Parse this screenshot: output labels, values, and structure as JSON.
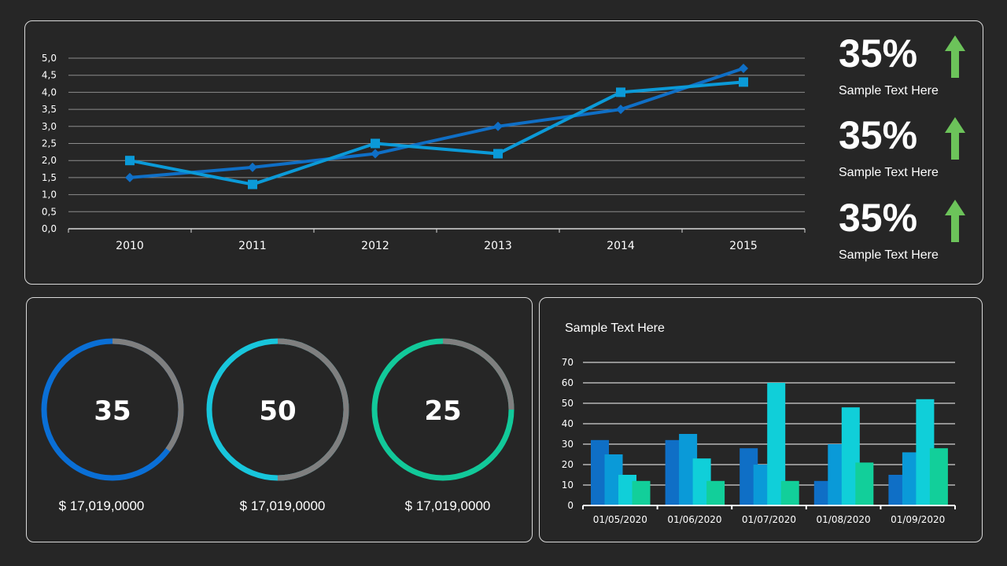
{
  "kpis": [
    {
      "value": "35%",
      "label": "Sample Text  Here",
      "icon": "arrow-up-icon",
      "color": "#6cc35a"
    },
    {
      "value": "35%",
      "label": "Sample Text  Here",
      "icon": "arrow-up-icon",
      "color": "#6cc35a"
    },
    {
      "value": "35%",
      "label": "Sample Text  Here",
      "icon": "arrow-up-icon",
      "color": "#6cc35a"
    }
  ],
  "donuts": [
    {
      "value": 35,
      "label": "35",
      "amount": "$ 17,019,0000",
      "color": "#0a6fd6",
      "color2": "#0a55b0"
    },
    {
      "value": 50,
      "label": "50",
      "amount": "$ 17,019,0000",
      "color": "#18c6dc",
      "color2": "#18c6dc"
    },
    {
      "value": 25,
      "label": "25",
      "amount": "$ 17,019,0000",
      "color": "#12c99a",
      "color2": "#12c99a"
    }
  ],
  "bar_title": "Sample Text  Here",
  "chart_data": [
    {
      "type": "line",
      "categories": [
        "2010",
        "2011",
        "2012",
        "2013",
        "2014",
        "2015"
      ],
      "ylim": [
        0,
        5
      ],
      "yticks": [
        "0,0",
        "0,5",
        "1,0",
        "1,5",
        "2,0",
        "2,5",
        "3,0",
        "3,5",
        "4,0",
        "4,5",
        "5,0"
      ],
      "grid": true,
      "series": [
        {
          "values": [
            1.5,
            1.8,
            2.2,
            3.0,
            3.5,
            4.7
          ],
          "marker": "diamond",
          "color": "#0f6fc6"
        },
        {
          "values": [
            2.0,
            1.3,
            2.5,
            2.2,
            4.0,
            4.3
          ],
          "marker": "square",
          "color": "#0b9ad8"
        }
      ]
    },
    {
      "type": "bar",
      "categories": [
        "01/05/2020",
        "01/06/2020",
        "01/07/2020",
        "01/08/2020",
        "01/09/2020"
      ],
      "ylim": [
        0,
        70
      ],
      "yticks": [
        "0",
        "10",
        "20",
        "30",
        "40",
        "50",
        "60",
        "70"
      ],
      "grid": true,
      "series": [
        {
          "values": [
            32,
            32,
            28,
            12,
            15
          ],
          "color": "#0f6fc6"
        },
        {
          "values": [
            25,
            35,
            20,
            30,
            26
          ],
          "color": "#0a9ad8"
        },
        {
          "values": [
            15,
            23,
            60,
            48,
            52
          ],
          "color": "#10cfd9"
        },
        {
          "values": [
            12,
            12,
            12,
            21,
            28
          ],
          "color": "#12cf9a"
        }
      ]
    }
  ]
}
